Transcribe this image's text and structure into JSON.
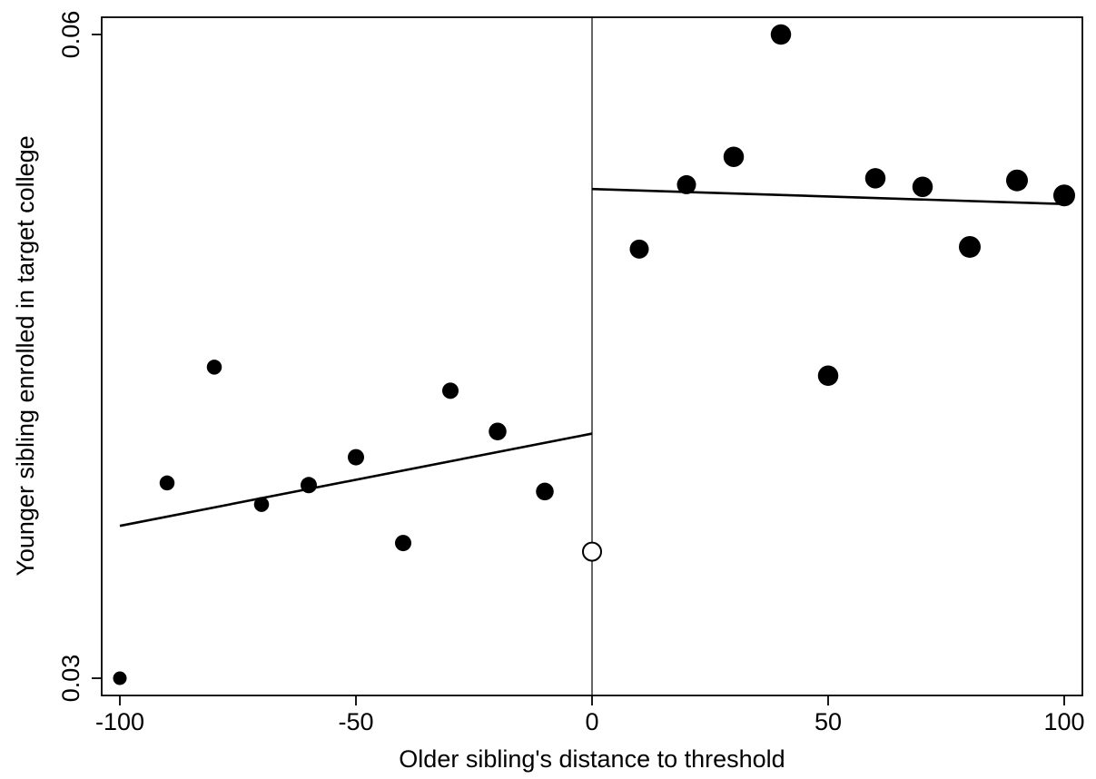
{
  "chart_data": {
    "type": "scatter",
    "title": "",
    "xlabel": "Older sibling's distance to threshold",
    "ylabel": "Younger sibling enrolled in target college",
    "xlim": [
      -100,
      100
    ],
    "ylim": [
      0.03,
      0.06
    ],
    "x_ticks": [
      -100,
      -50,
      0,
      50,
      100
    ],
    "x_tick_labels": [
      "-100",
      "-50",
      "0",
      "50",
      "100"
    ],
    "y_ticks": [
      0.03,
      0.06
    ],
    "y_tick_labels": [
      "0.03",
      "0.06"
    ],
    "grid": false,
    "threshold_line_x": 0,
    "series": [
      {
        "points": [
          {
            "x": -100,
            "y": 0.03,
            "size": 1
          },
          {
            "x": -90,
            "y": 0.0391,
            "size": 2
          },
          {
            "x": -80,
            "y": 0.0445,
            "size": 2
          },
          {
            "x": -70,
            "y": 0.0381,
            "size": 2
          },
          {
            "x": -60,
            "y": 0.039,
            "size": 3
          },
          {
            "x": -50,
            "y": 0.0403,
            "size": 3
          },
          {
            "x": -40,
            "y": 0.0363,
            "size": 3
          },
          {
            "x": -30,
            "y": 0.0434,
            "size": 3
          },
          {
            "x": -20,
            "y": 0.0415,
            "size": 4
          },
          {
            "x": -10,
            "y": 0.0387,
            "size": 4
          },
          {
            "x": 10,
            "y": 0.05,
            "size": 5
          },
          {
            "x": 20,
            "y": 0.053,
            "size": 5
          },
          {
            "x": 30,
            "y": 0.0543,
            "size": 6
          },
          {
            "x": 40,
            "y": 0.06,
            "size": 6
          },
          {
            "x": 50,
            "y": 0.0441,
            "size": 6
          },
          {
            "x": 60,
            "y": 0.0533,
            "size": 6
          },
          {
            "x": 70,
            "y": 0.0529,
            "size": 6
          },
          {
            "x": 80,
            "y": 0.0501,
            "size": 7
          },
          {
            "x": 90,
            "y": 0.0532,
            "size": 7
          },
          {
            "x": 100,
            "y": 0.0525,
            "size": 7
          }
        ]
      }
    ],
    "hollow_points": [
      {
        "x": 0,
        "y": 0.0359
      }
    ],
    "fit_lines": [
      {
        "x": [
          -100,
          0
        ],
        "y": [
          0.0371,
          0.0414
        ]
      },
      {
        "x": [
          0,
          100
        ],
        "y": [
          0.0528,
          0.0521
        ]
      }
    ]
  }
}
